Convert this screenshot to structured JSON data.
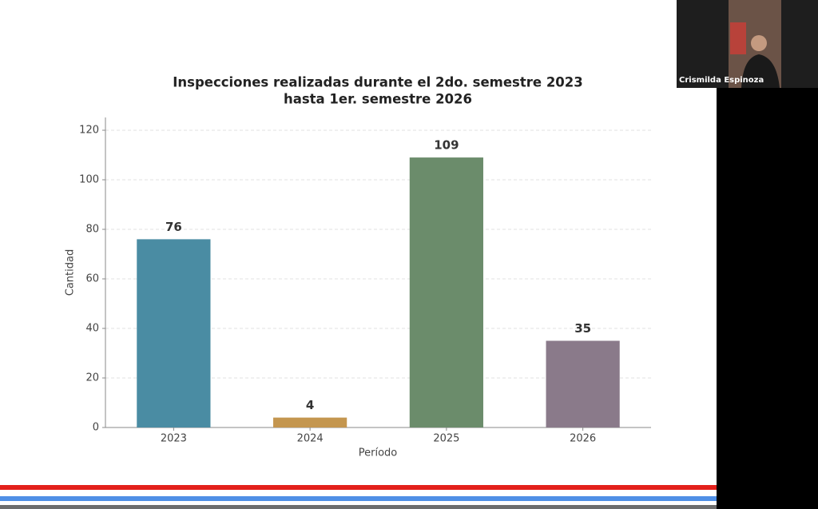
{
  "chart_data": {
    "type": "bar",
    "title": [
      "Inspecciones realizadas durante el 2do. semestre 2023",
      "hasta 1er. semestre 2026"
    ],
    "x_label": "Período",
    "y_label": "Cantidad",
    "categories": [
      "2023",
      "2024",
      "2025",
      "2026"
    ],
    "values": [
      76,
      4,
      109,
      35
    ],
    "colors": [
      "#4a8ca3",
      "#c4964f",
      "#6b8c6b",
      "#8a7a8a"
    ],
    "ylim": [
      0,
      120
    ],
    "yticks": [
      0,
      20,
      40,
      60,
      80,
      100,
      120
    ],
    "grid": true
  },
  "participant": {
    "name": "Crismilda Espinoza"
  }
}
